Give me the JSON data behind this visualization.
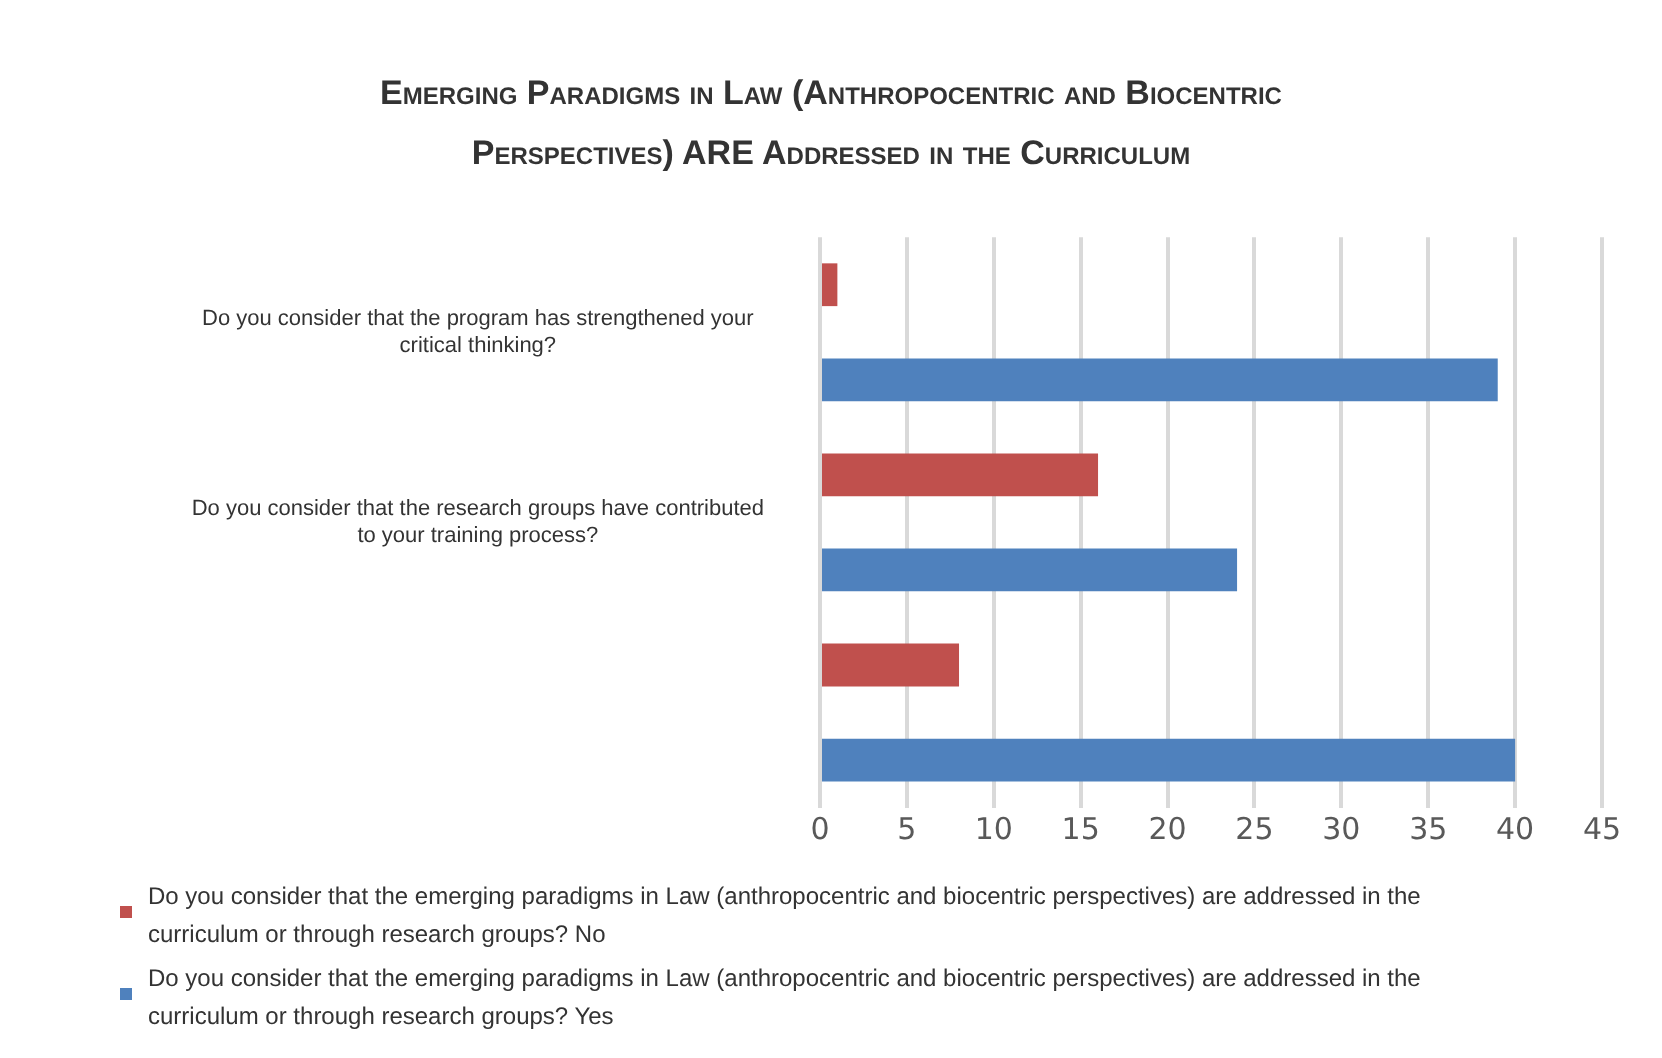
{
  "chart_data": {
    "type": "bar",
    "orientation": "horizontal",
    "title": "Emerging Paradigms in Law (Anthropocentric and Biocentric Perspectives) ARE Addressed in the Curriculum",
    "categories": [
      "Do you consider that the program has strengthened your critical thinking?",
      "Do you consider that the research groups have contributed to your training process?",
      null
    ],
    "series": [
      {
        "name": "Do you consider that the emerging paradigms in Law (anthropocentric and biocentric perspectives) are addressed in the curriculum or through research groups? No",
        "color": "#c0504d",
        "values": [
          1,
          16,
          8
        ]
      },
      {
        "name": "Do you consider that the emerging paradigms in Law (anthropocentric and biocentric perspectives) are addressed in the curriculum or through research groups? Yes",
        "color": "#4f81bd",
        "values": [
          39,
          24,
          40
        ]
      }
    ],
    "xlim": [
      0,
      45
    ],
    "xticks": [
      0,
      5,
      10,
      15,
      20,
      25,
      30,
      35,
      40,
      45
    ],
    "grid": "x",
    "legend": "bottom"
  }
}
